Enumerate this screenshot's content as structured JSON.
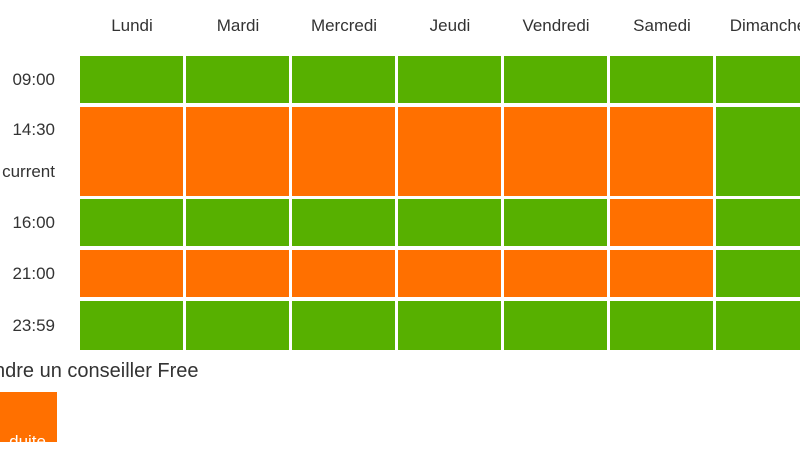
{
  "days": [
    "Lundi",
    "Mardi",
    "Mercredi",
    "Jeudi",
    "Vendredi",
    "Samedi",
    "Dimanche"
  ],
  "rows": [
    {
      "label": "09:00",
      "sublabel": "",
      "status": [
        "open",
        "open",
        "open",
        "open",
        "open",
        "open",
        "open"
      ]
    },
    {
      "label": "14:30",
      "sublabel": "current",
      "status": [
        "busy",
        "busy",
        "busy",
        "busy",
        "busy",
        "busy",
        "open"
      ]
    },
    {
      "label": "16:00",
      "sublabel": "",
      "status": [
        "open",
        "open",
        "open",
        "open",
        "open",
        "busy",
        "open"
      ]
    },
    {
      "label": "21:00",
      "sublabel": "",
      "status": [
        "busy",
        "busy",
        "busy",
        "busy",
        "busy",
        "busy",
        "open"
      ]
    },
    {
      "label": "23:59",
      "sublabel": "",
      "status": [
        "open",
        "open",
        "open",
        "open",
        "open",
        "open",
        "open"
      ]
    }
  ],
  "colors": {
    "open": "#57b000",
    "busy": "#ff7000"
  },
  "note": "ndre un conseiller Free",
  "button_label": "duite"
}
